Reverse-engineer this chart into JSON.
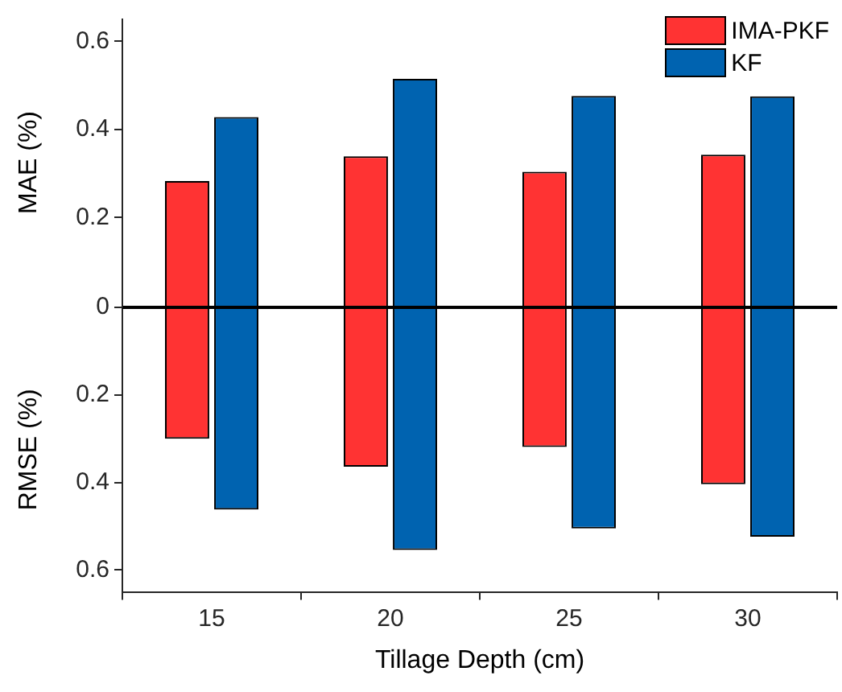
{
  "chart_data": [
    {
      "type": "bar",
      "ylabel": "MAE (%)",
      "categories": [
        "15",
        "20",
        "25",
        "30"
      ],
      "series": [
        {
          "name": "IMA-PKF",
          "color": "#ff3333",
          "values": [
            0.283,
            0.339,
            0.304,
            0.343
          ]
        },
        {
          "name": "KF",
          "color": "#0063b0",
          "values": [
            0.428,
            0.515,
            0.476,
            0.475
          ]
        }
      ],
      "ylim": [
        0,
        0.65
      ],
      "yticks": [
        0.2,
        0.4,
        0.6
      ],
      "tick_labels": "y",
      "legend": "top right"
    },
    {
      "type": "bar",
      "ylabel": "RMSE (%)",
      "xlabel": "Tillage Depth (cm)",
      "categories": [
        "15",
        "20",
        "25",
        "30"
      ],
      "series": [
        {
          "color": "#ff3333",
          "values": [
            0.3,
            0.364,
            0.319,
            0.404
          ]
        },
        {
          "color": "#0063b0",
          "values": [
            0.462,
            0.554,
            0.505,
            0.524
          ]
        }
      ],
      "ylim": [
        0.65,
        0
      ],
      "yticks": [
        0,
        0.2,
        0.4,
        0.6
      ]
    }
  ]
}
